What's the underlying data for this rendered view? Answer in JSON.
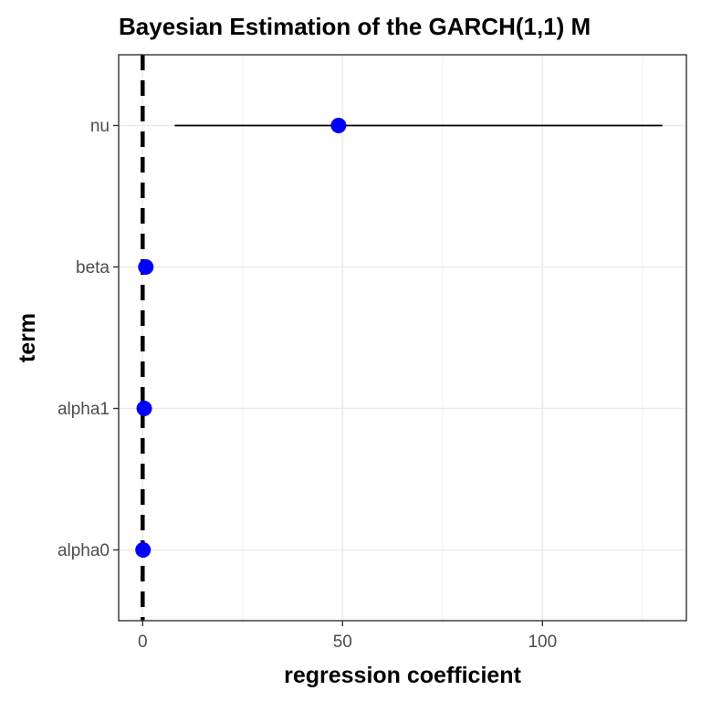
{
  "chart_data": {
    "type": "scatter",
    "title": "Bayesian Estimation of the GARCH(1,1) M",
    "xlabel": "regression coefficient",
    "ylabel": "term",
    "xlim": [
      -6,
      136
    ],
    "x_ticks": [
      0,
      50,
      100
    ],
    "x_tick_labels": [
      "0",
      "50",
      "100"
    ],
    "categories": [
      "alpha0",
      "alpha1",
      "beta",
      "nu"
    ],
    "series": [
      {
        "values": [
          0.1,
          0.4,
          0.8,
          49
        ],
        "ci_low": [
          0.0,
          0.0,
          0.0,
          8
        ],
        "ci_high": [
          0.3,
          0.9,
          1.0,
          130
        ]
      }
    ],
    "reference_line": {
      "x": 0,
      "style": "dashed"
    },
    "grid": true,
    "point_color": "#0000ff",
    "errorbar_color": "#000000"
  }
}
